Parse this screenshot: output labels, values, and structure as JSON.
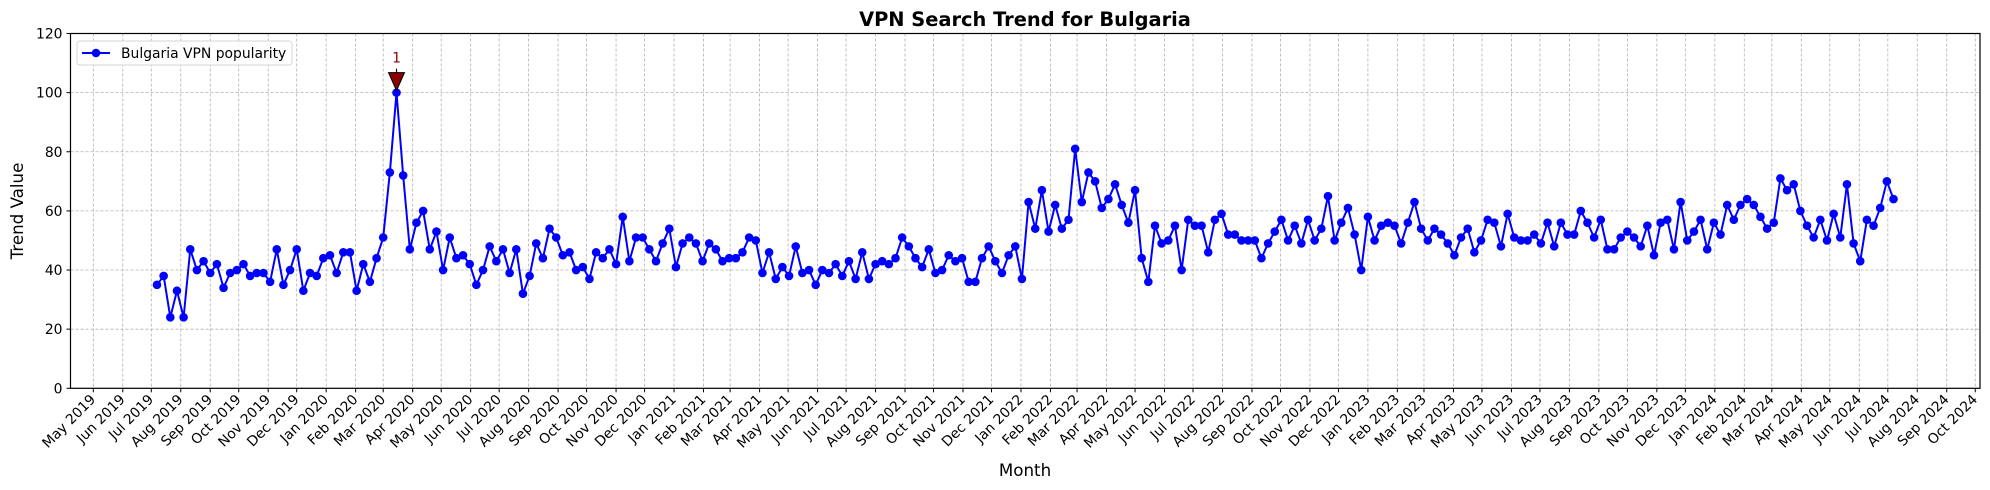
{
  "chart_data": {
    "type": "line",
    "title": "VPN Search Trend for Bulgaria",
    "xlabel": "Month",
    "ylabel": "Trend Value",
    "ylim": [
      0,
      120
    ],
    "yticks": [
      0,
      20,
      40,
      60,
      80,
      100,
      120
    ],
    "xlim": [
      "2019-04-07",
      "2024-10-06"
    ],
    "xtick_labels": [
      "May 2019",
      "Jun 2019",
      "Jul 2019",
      "Aug 2019",
      "Sep 2019",
      "Oct 2019",
      "Nov 2019",
      "Dec 2019",
      "Jan 2020",
      "Feb 2020",
      "Mar 2020",
      "Apr 2020",
      "May 2020",
      "Jun 2020",
      "Jul 2020",
      "Aug 2020",
      "Sep 2020",
      "Oct 2020",
      "Nov 2020",
      "Dec 2020",
      "Jan 2021",
      "Feb 2021",
      "Mar 2021",
      "Apr 2021",
      "May 2021",
      "Jun 2021",
      "Jul 2021",
      "Aug 2021",
      "Sep 2021",
      "Oct 2021",
      "Nov 2021",
      "Dec 2021",
      "Jan 2022",
      "Feb 2022",
      "Mar 2022",
      "Apr 2022",
      "May 2022",
      "Jun 2022",
      "Jul 2022",
      "Aug 2022",
      "Sep 2022",
      "Oct 2022",
      "Nov 2022",
      "Dec 2022",
      "Jan 2023",
      "Feb 2023",
      "Mar 2023",
      "Apr 2023",
      "May 2023",
      "Jun 2023",
      "Jul 2023",
      "Aug 2023",
      "Sep 2023",
      "Oct 2023",
      "Nov 2023",
      "Dec 2023",
      "Jan 2024",
      "Feb 2024",
      "Mar 2024",
      "Apr 2024",
      "May 2024",
      "Jun 2024",
      "Jul 2024",
      "Aug 2024",
      "Sep 2024",
      "Oct 2024"
    ],
    "grid": true,
    "legend_position": "upper-left",
    "series": [
      {
        "name": "Bulgaria VPN popularity",
        "color": "#0000ff",
        "marker": "circle",
        "x": [
          "2019-07-07",
          "2019-07-14",
          "2019-07-21",
          "2019-07-28",
          "2019-08-04",
          "2019-08-11",
          "2019-08-18",
          "2019-08-25",
          "2019-09-01",
          "2019-09-08",
          "2019-09-15",
          "2019-09-22",
          "2019-09-29",
          "2019-10-06",
          "2019-10-13",
          "2019-10-20",
          "2019-10-27",
          "2019-11-03",
          "2019-11-10",
          "2019-11-17",
          "2019-11-24",
          "2019-12-01",
          "2019-12-08",
          "2019-12-15",
          "2019-12-22",
          "2019-12-29",
          "2020-01-05",
          "2020-01-12",
          "2020-01-19",
          "2020-01-26",
          "2020-02-02",
          "2020-02-09",
          "2020-02-16",
          "2020-02-23",
          "2020-03-01",
          "2020-03-08",
          "2020-03-15",
          "2020-03-22",
          "2020-03-29",
          "2020-04-05",
          "2020-04-12",
          "2020-04-19",
          "2020-04-26",
          "2020-05-03",
          "2020-05-10",
          "2020-05-17",
          "2020-05-24",
          "2020-05-31",
          "2020-06-07",
          "2020-06-14",
          "2020-06-21",
          "2020-06-28",
          "2020-07-05",
          "2020-07-12",
          "2020-07-19",
          "2020-07-26",
          "2020-08-02",
          "2020-08-09",
          "2020-08-16",
          "2020-08-23",
          "2020-08-30",
          "2020-09-06",
          "2020-09-13",
          "2020-09-20",
          "2020-09-27",
          "2020-10-04",
          "2020-10-11",
          "2020-10-18",
          "2020-10-25",
          "2020-11-01",
          "2020-11-08",
          "2020-11-15",
          "2020-11-22",
          "2020-11-29",
          "2020-12-06",
          "2020-12-13",
          "2020-12-20",
          "2020-12-27",
          "2021-01-03",
          "2021-01-10",
          "2021-01-17",
          "2021-01-24",
          "2021-01-31",
          "2021-02-07",
          "2021-02-14",
          "2021-02-21",
          "2021-02-28",
          "2021-03-07",
          "2021-03-14",
          "2021-03-21",
          "2021-03-28",
          "2021-04-04",
          "2021-04-11",
          "2021-04-18",
          "2021-04-25",
          "2021-05-02",
          "2021-05-09",
          "2021-05-16",
          "2021-05-23",
          "2021-05-30",
          "2021-06-06",
          "2021-06-13",
          "2021-06-20",
          "2021-06-27",
          "2021-07-04",
          "2021-07-11",
          "2021-07-18",
          "2021-07-25",
          "2021-08-01",
          "2021-08-08",
          "2021-08-15",
          "2021-08-22",
          "2021-08-29",
          "2021-09-05",
          "2021-09-12",
          "2021-09-19",
          "2021-09-26",
          "2021-10-03",
          "2021-10-10",
          "2021-10-17",
          "2021-10-24",
          "2021-10-31",
          "2021-11-07",
          "2021-11-14",
          "2021-11-21",
          "2021-11-28",
          "2021-12-05",
          "2021-12-12",
          "2021-12-19",
          "2021-12-26",
          "2022-01-02",
          "2022-01-09",
          "2022-01-16",
          "2022-01-23",
          "2022-01-30",
          "2022-02-06",
          "2022-02-13",
          "2022-02-20",
          "2022-02-27",
          "2022-03-06",
          "2022-03-13",
          "2022-03-20",
          "2022-03-27",
          "2022-04-03",
          "2022-04-10",
          "2022-04-17",
          "2022-04-24",
          "2022-05-01",
          "2022-05-08",
          "2022-05-15",
          "2022-05-22",
          "2022-05-29",
          "2022-06-05",
          "2022-06-12",
          "2022-06-19",
          "2022-06-26",
          "2022-07-03",
          "2022-07-10",
          "2022-07-17",
          "2022-07-24",
          "2022-07-31",
          "2022-08-07",
          "2022-08-14",
          "2022-08-21",
          "2022-08-28",
          "2022-09-04",
          "2022-09-11",
          "2022-09-18",
          "2022-09-25",
          "2022-10-02",
          "2022-10-09",
          "2022-10-16",
          "2022-10-23",
          "2022-10-30",
          "2022-11-06",
          "2022-11-13",
          "2022-11-20",
          "2022-11-27",
          "2022-12-04",
          "2022-12-11",
          "2022-12-18",
          "2022-12-25",
          "2023-01-01",
          "2023-01-08",
          "2023-01-15",
          "2023-01-22",
          "2023-01-29",
          "2023-02-05",
          "2023-02-12",
          "2023-02-19",
          "2023-02-26",
          "2023-03-05",
          "2023-03-12",
          "2023-03-19",
          "2023-03-26",
          "2023-04-02",
          "2023-04-09",
          "2023-04-16",
          "2023-04-23",
          "2023-04-30",
          "2023-05-07",
          "2023-05-14",
          "2023-05-21",
          "2023-05-28",
          "2023-06-04",
          "2023-06-11",
          "2023-06-18",
          "2023-06-25",
          "2023-07-02",
          "2023-07-09",
          "2023-07-16",
          "2023-07-23",
          "2023-07-30",
          "2023-08-06",
          "2023-08-13",
          "2023-08-20",
          "2023-08-27",
          "2023-09-03",
          "2023-09-10",
          "2023-09-17",
          "2023-09-24",
          "2023-10-01",
          "2023-10-08",
          "2023-10-15",
          "2023-10-22",
          "2023-10-29",
          "2023-11-05",
          "2023-11-12",
          "2023-11-19",
          "2023-11-26",
          "2023-12-03",
          "2023-12-10",
          "2023-12-17",
          "2023-12-24",
          "2023-12-31",
          "2024-01-07",
          "2024-01-14",
          "2024-01-21",
          "2024-01-28",
          "2024-02-04",
          "2024-02-11",
          "2024-02-18",
          "2024-02-25",
          "2024-03-03",
          "2024-03-10",
          "2024-03-17",
          "2024-03-24",
          "2024-03-31",
          "2024-04-07",
          "2024-04-14",
          "2024-04-21",
          "2024-04-28",
          "2024-05-05",
          "2024-05-12",
          "2024-05-19",
          "2024-05-26",
          "2024-06-02",
          "2024-06-09",
          "2024-06-16",
          "2024-06-23",
          "2024-06-30",
          "2024-07-07"
        ],
        "values": [
          35,
          38,
          24,
          33,
          24,
          47,
          40,
          43,
          39,
          42,
          34,
          39,
          40,
          42,
          38,
          39,
          39,
          36,
          47,
          35,
          40,
          47,
          33,
          39,
          38,
          44,
          45,
          39,
          46,
          46,
          33,
          42,
          36,
          44,
          51,
          73,
          100,
          72,
          47,
          56,
          60,
          47,
          53,
          40,
          51,
          44,
          45,
          42,
          35,
          40,
          48,
          43,
          47,
          39,
          47,
          32,
          38,
          49,
          44,
          54,
          51,
          45,
          46,
          40,
          41,
          37,
          46,
          44,
          47,
          42,
          58,
          43,
          51,
          51,
          47,
          43,
          49,
          54,
          41,
          49,
          51,
          49,
          43,
          49,
          47,
          43,
          44,
          44,
          46,
          51,
          50,
          39,
          46,
          37,
          41,
          38,
          48,
          39,
          40,
          35,
          40,
          39,
          42,
          38,
          43,
          37,
          46,
          37,
          42,
          43,
          42,
          44,
          51,
          48,
          44,
          41,
          47,
          39,
          40,
          45,
          43,
          44,
          36,
          36,
          44,
          48,
          43,
          39,
          45,
          48,
          37,
          63,
          54,
          67,
          53,
          62,
          54,
          57,
          81,
          63,
          73,
          70,
          61,
          64,
          69,
          62,
          56,
          67,
          44,
          36,
          55,
          49,
          50,
          55,
          40,
          57,
          55,
          55,
          46,
          57,
          59,
          52,
          52,
          50,
          50,
          50,
          44,
          49,
          53,
          57,
          50,
          55,
          49,
          57,
          50,
          54,
          65,
          50,
          56,
          61,
          52,
          40,
          58,
          50,
          55,
          56,
          55,
          49,
          56,
          63,
          54,
          50,
          54,
          52,
          49,
          45,
          51,
          54,
          46,
          50,
          57,
          56,
          48,
          59,
          51,
          50,
          50,
          52,
          49,
          56,
          48,
          56,
          52,
          52,
          60,
          56,
          51,
          57,
          47,
          47,
          51,
          53,
          51,
          48,
          55,
          45,
          56,
          57,
          47,
          63,
          50,
          53,
          57,
          47,
          56,
          52,
          62,
          57,
          62,
          64,
          62,
          58,
          54,
          56,
          71,
          67,
          69,
          60,
          55,
          51,
          57,
          50,
          59,
          51,
          69,
          49,
          43,
          57,
          55,
          61,
          70,
          64
        ]
      }
    ],
    "annotations": [
      {
        "text": "1",
        "x": "2020-03-15",
        "y": 100,
        "color": "#8b0000",
        "marker": "triangle-down"
      }
    ]
  }
}
